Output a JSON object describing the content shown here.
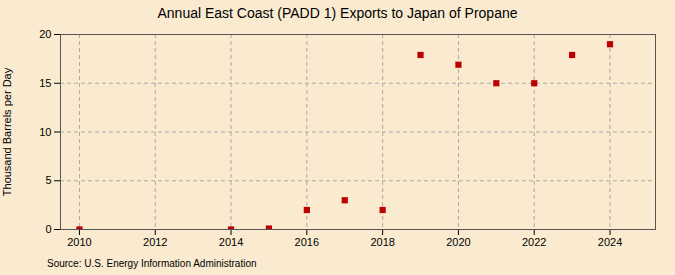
{
  "chart_data": {
    "type": "scatter",
    "title": "Annual East Coast (PADD 1) Exports to Japan of Propane",
    "ylabel": "Thousand Barrels per Day",
    "source": "Source: U.S. Energy Information Administration",
    "x": [
      2010,
      2014,
      2015,
      2016,
      2017,
      2018,
      2019,
      2020,
      2021,
      2022,
      2023,
      2024
    ],
    "values": [
      0.0,
      0.0,
      0.1,
      2.0,
      3.0,
      2.0,
      17.9,
      16.9,
      15.0,
      15.0,
      17.9,
      19.0
    ],
    "color": "#bb0000",
    "marker": "square",
    "xlim": [
      2009.5,
      2025.2
    ],
    "ylim": [
      0,
      20
    ],
    "xticks": [
      2010,
      2012,
      2014,
      2016,
      2018,
      2020,
      2022,
      2024
    ],
    "yticks": [
      0,
      5,
      10,
      15,
      20
    ],
    "grid": true
  }
}
